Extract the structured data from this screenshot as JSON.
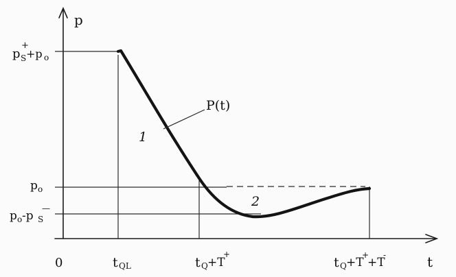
{
  "diagram": {
    "y_axis_label": "p",
    "x_axis_label": "t",
    "origin_label": "0",
    "y_labels": {
      "peak": "p",
      "peak_sup": "+",
      "peak_sub": "S",
      "peak_rest": " +p",
      "peak_rest_sub": "o",
      "ambient": "p",
      "ambient_sub": "o",
      "trough": "p",
      "trough_sub": "o",
      "trough_mid": "-p",
      "trough_sub2": "S",
      "trough_sup": "—"
    },
    "x_labels": {
      "t1_main": "t",
      "t1_sub": "QL",
      "t2_main": "t",
      "t2_sub": "Q",
      "t2_rest": "+T",
      "t2_sup": "+",
      "t3_main": "t",
      "t3_sub": "Q",
      "t3_rest": "+T",
      "t3_sup": "+",
      "t3_rest2": "+T",
      "t3_sup2": "-"
    },
    "curve_label": "P(t)",
    "phase_labels": [
      "1",
      "2"
    ],
    "colors": {
      "ink": "#141414",
      "paper": "#fbfbfb"
    }
  }
}
